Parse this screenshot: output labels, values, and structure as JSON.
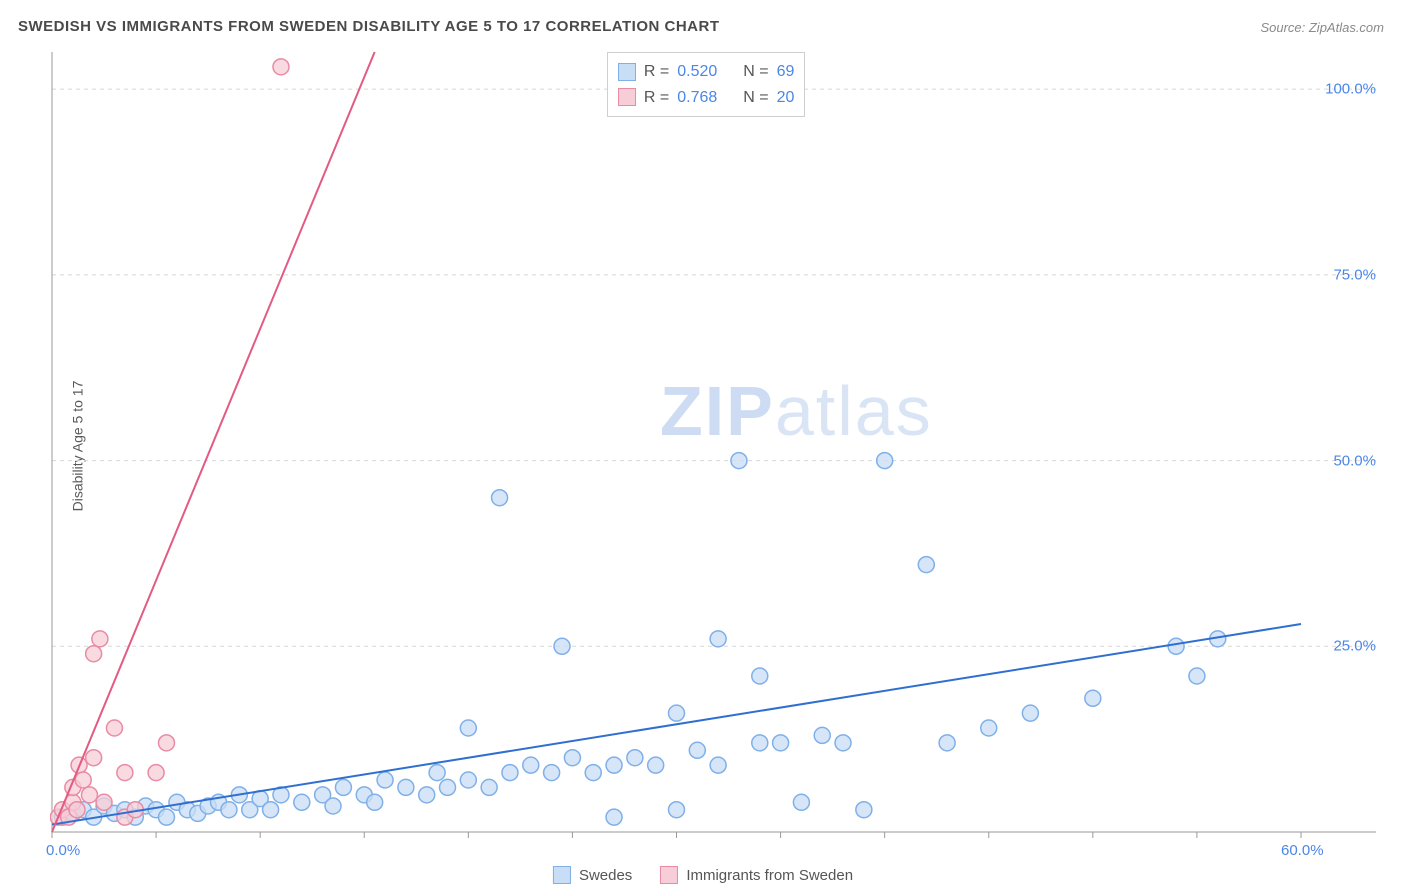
{
  "title": "SWEDISH VS IMMIGRANTS FROM SWEDEN DISABILITY AGE 5 TO 17 CORRELATION CHART",
  "source_prefix": "Source: ",
  "source_name": "ZipAtlas.com",
  "y_axis_label": "Disability Age 5 to 17",
  "watermark_bold": "ZIP",
  "watermark_light": "atlas",
  "chart": {
    "type": "scatter",
    "xlim": [
      0,
      60
    ],
    "ylim": [
      0,
      105
    ],
    "x_ticks": [
      0,
      60
    ],
    "x_tick_labels": [
      "0.0%",
      "60.0%"
    ],
    "x_minor_tick_step": 5,
    "y_ticks": [
      25,
      50,
      75,
      100
    ],
    "y_tick_labels": [
      "25.0%",
      "50.0%",
      "75.0%",
      "100.0%"
    ],
    "grid_color": "#d8d8d8",
    "axis_color": "#9a9a9a",
    "background_color": "#ffffff",
    "marker_radius": 8,
    "marker_stroke_width": 1.5,
    "line_width": 2,
    "series": [
      {
        "name": "Swedes",
        "fill": "#c8ddf6",
        "stroke": "#7fb0e8",
        "line_color": "#2f6fd0",
        "R": "0.520",
        "N": "69",
        "trend": {
          "x1": 0,
          "y1": 1,
          "x2": 60,
          "y2": 28
        },
        "points": [
          [
            0.5,
            2
          ],
          [
            1,
            2.5
          ],
          [
            1.5,
            3
          ],
          [
            2,
            2
          ],
          [
            2.5,
            3.5
          ],
          [
            3,
            2.5
          ],
          [
            3.5,
            3
          ],
          [
            4,
            2
          ],
          [
            4.5,
            3.5
          ],
          [
            5,
            3
          ],
          [
            5.5,
            2
          ],
          [
            6,
            4
          ],
          [
            6.5,
            3
          ],
          [
            7,
            2.5
          ],
          [
            7.5,
            3.5
          ],
          [
            8,
            4
          ],
          [
            8.5,
            3
          ],
          [
            9,
            5
          ],
          [
            9.5,
            3
          ],
          [
            10,
            4.5
          ],
          [
            10.5,
            3
          ],
          [
            11,
            5
          ],
          [
            12,
            4
          ],
          [
            13,
            5
          ],
          [
            13.5,
            3.5
          ],
          [
            14,
            6
          ],
          [
            15,
            5
          ],
          [
            15.5,
            4
          ],
          [
            16,
            7
          ],
          [
            17,
            6
          ],
          [
            18,
            5
          ],
          [
            18.5,
            8
          ],
          [
            19,
            6
          ],
          [
            20,
            14
          ],
          [
            20,
            7
          ],
          [
            21,
            6
          ],
          [
            21.5,
            45
          ],
          [
            22,
            8
          ],
          [
            23,
            9
          ],
          [
            24,
            8
          ],
          [
            24.5,
            25
          ],
          [
            25,
            10
          ],
          [
            26,
            8
          ],
          [
            27,
            9
          ],
          [
            27,
            2
          ],
          [
            28,
            10
          ],
          [
            29,
            9
          ],
          [
            30,
            16
          ],
          [
            30,
            3
          ],
          [
            31,
            11
          ],
          [
            32,
            26
          ],
          [
            32,
            9
          ],
          [
            33,
            50
          ],
          [
            34,
            12
          ],
          [
            34,
            21
          ],
          [
            35,
            12
          ],
          [
            36,
            4
          ],
          [
            37,
            13
          ],
          [
            38,
            12
          ],
          [
            39,
            3
          ],
          [
            40,
            50
          ],
          [
            42,
            36
          ],
          [
            43,
            12
          ],
          [
            45,
            14
          ],
          [
            47,
            16
          ],
          [
            50,
            18
          ],
          [
            54,
            25
          ],
          [
            55,
            21
          ],
          [
            56,
            26
          ]
        ]
      },
      {
        "name": "Immigrants from Sweden",
        "fill": "#f7cdd7",
        "stroke": "#e88ba4",
        "line_color": "#e35a82",
        "R": "0.768",
        "N": "20",
        "trend": {
          "x1": 0,
          "y1": 0,
          "x2": 15.5,
          "y2": 105
        },
        "points": [
          [
            0.3,
            2
          ],
          [
            0.5,
            3
          ],
          [
            0.8,
            2
          ],
          [
            1,
            4
          ],
          [
            1,
            6
          ],
          [
            1.2,
            3
          ],
          [
            1.3,
            9
          ],
          [
            1.5,
            7
          ],
          [
            1.8,
            5
          ],
          [
            2,
            10
          ],
          [
            2,
            24
          ],
          [
            2.3,
            26
          ],
          [
            2.5,
            4
          ],
          [
            3,
            14
          ],
          [
            3.5,
            8
          ],
          [
            3.5,
            2
          ],
          [
            4,
            3
          ],
          [
            5,
            8
          ],
          [
            5.5,
            12
          ],
          [
            11,
            103
          ]
        ]
      }
    ]
  },
  "stats_box": {
    "r_label": "R  =",
    "n_label": "N  ="
  },
  "colors": {
    "title": "#4a4a4a",
    "source": "#8a8a8a",
    "value": "#4a86e8"
  }
}
